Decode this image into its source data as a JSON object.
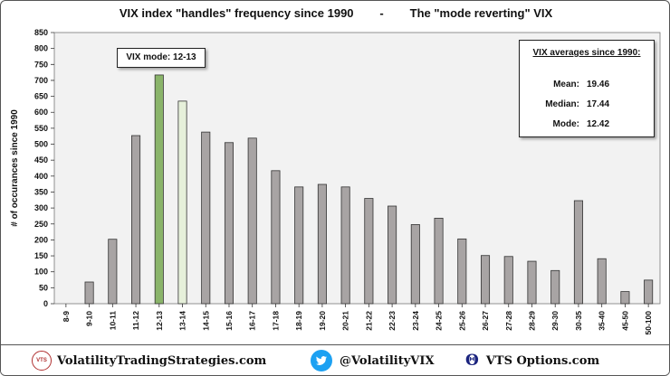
{
  "title": "VIX index \"handles\" frequency since 1990        -        The \"mode reverting\" VIX",
  "chart_data": {
    "type": "bar",
    "ylabel": "# of occurances since 1990",
    "xlabel": "",
    "ylim": [
      0,
      850
    ],
    "ytick_step": 50,
    "grid": "none",
    "categories": [
      "8-9",
      "9-10",
      "10-11",
      "11-12",
      "12-13",
      "13-14",
      "14-15",
      "15-16",
      "16-17",
      "17-18",
      "18-19",
      "19-20",
      "20-21",
      "21-22",
      "22-23",
      "23-24",
      "24-25",
      "25-26",
      "26-27",
      "27-28",
      "28-29",
      "29-30",
      "30-35",
      "35-40",
      "45-50",
      "50-100"
    ],
    "values": [
      0,
      68,
      202,
      527,
      717,
      635,
      538,
      505,
      519,
      417,
      366,
      374,
      366,
      330,
      306,
      248,
      268,
      203,
      151,
      148,
      133,
      104,
      323,
      141,
      38,
      74
    ],
    "bar_colors": {
      "default": "#a8a4a4",
      "mode": "#8ab46a",
      "second": "#e6f0da"
    },
    "highlight": {
      "mode_index": 4,
      "second_index": 5
    },
    "plot_background": "#f2f2f2"
  },
  "annotations": {
    "mode_label": "VIX mode:  12-13",
    "averages": {
      "title": "VIX averages since 1990:",
      "rows": [
        {
          "label": "Mean:",
          "value": "19.46"
        },
        {
          "label": "Median:",
          "value": "17.44"
        },
        {
          "label": "Mode:",
          "value": "12.42"
        }
      ]
    }
  },
  "footer": {
    "logo_text": "VTS",
    "site": "VolatilityTradingStrategies.com",
    "twitter_handle": "@VolatilityVIX",
    "options_label": "VTS Options.com",
    "twitter_icon": "twitter-bird-icon",
    "options_icon": "theta-icon"
  }
}
